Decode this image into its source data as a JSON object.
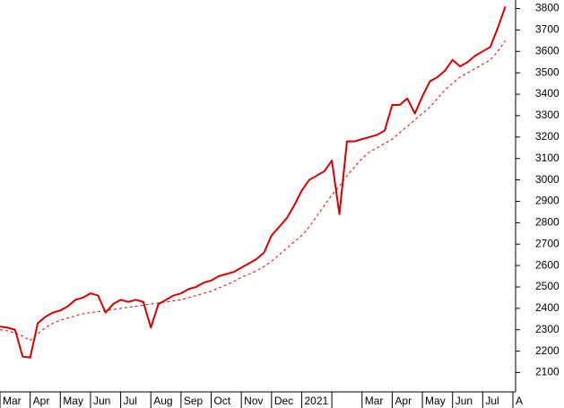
{
  "chart_data": {
    "type": "line",
    "categories": [
      "Mar",
      null,
      null,
      null,
      "Apr",
      null,
      null,
      null,
      "May",
      null,
      null,
      null,
      "Jun",
      null,
      null,
      null,
      "Jul",
      null,
      null,
      null,
      "Aug",
      null,
      null,
      null,
      "Sep",
      null,
      null,
      null,
      "Oct",
      null,
      null,
      null,
      "Nov",
      null,
      null,
      null,
      "Dec",
      null,
      null,
      null,
      "2021",
      null,
      null,
      null,
      null,
      null,
      null,
      null,
      "Mar",
      null,
      null,
      null,
      "Apr",
      null,
      null,
      null,
      "May",
      null,
      null,
      null,
      "Jun",
      null,
      null,
      null,
      "Jul",
      null,
      null,
      null,
      "A"
    ],
    "series": [
      {
        "color": "#d40000",
        "style": "solid",
        "values": [
          2315,
          2310,
          2300,
          2175,
          2170,
          2330,
          2360,
          2380,
          2390,
          2410,
          2440,
          2450,
          2470,
          2460,
          2380,
          2420,
          2440,
          2430,
          2440,
          2430,
          2310,
          2420,
          2440,
          2460,
          2470,
          2490,
          2500,
          2520,
          2530,
          2550,
          2560,
          2570,
          2590,
          2610,
          2630,
          2660,
          2740,
          2780,
          2820,
          2880,
          2950,
          3000,
          3020,
          3040,
          3090,
          2840,
          3180,
          3180,
          3190,
          3200,
          3210,
          3230,
          3350,
          3350,
          3380,
          3310,
          3390,
          3460,
          3480,
          3510,
          3560,
          3530,
          3550,
          3580,
          3600,
          3620,
          3710,
          3810,
          null
        ]
      },
      {
        "color": "#d40000",
        "style": "dashed",
        "values": [
          2300,
          2295,
          2285,
          2270,
          2250,
          2280,
          2310,
          2330,
          2345,
          2355,
          2365,
          2375,
          2380,
          2385,
          2390,
          2395,
          2400,
          2405,
          2410,
          2415,
          2420,
          2425,
          2430,
          2435,
          2440,
          2450,
          2460,
          2470,
          2480,
          2495,
          2510,
          2525,
          2545,
          2560,
          2575,
          2595,
          2620,
          2650,
          2680,
          2710,
          2740,
          2780,
          2830,
          2880,
          2930,
          2970,
          3020,
          3060,
          3100,
          3130,
          3150,
          3170,
          3190,
          3220,
          3250,
          3280,
          3310,
          3340,
          3380,
          3420,
          3450,
          3480,
          3500,
          3520,
          3540,
          3560,
          3600,
          3650,
          null
        ]
      }
    ],
    "ylim": [
      2010,
      3840
    ],
    "yticks": [
      2100,
      2200,
      2300,
      2400,
      2500,
      2600,
      2700,
      2800,
      2900,
      3000,
      3100,
      3200,
      3300,
      3400,
      3500,
      3600,
      3700,
      3800
    ],
    "y_axis_side": "right"
  }
}
